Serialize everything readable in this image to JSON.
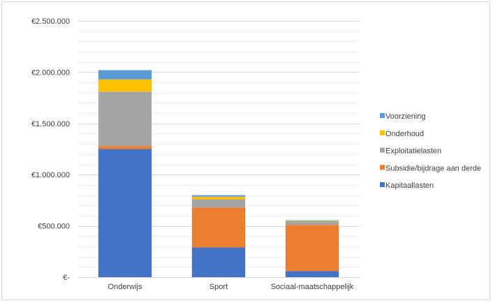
{
  "chart_data": {
    "type": "bar",
    "stacked": true,
    "categories": [
      "Onderwijs",
      "Sport",
      "Sociaal-maatschappelijk"
    ],
    "series": [
      {
        "name": "Kapitaallasten",
        "color": "#4472C4",
        "values": [
          1250000,
          290000,
          60000
        ]
      },
      {
        "name": "Subsidie/bijdrage aan derde",
        "color": "#ED7D31",
        "values": [
          30000,
          390000,
          450000
        ]
      },
      {
        "name": "Exploitatielasten",
        "color": "#A5A5A5",
        "values": [
          530000,
          80000,
          35000
        ]
      },
      {
        "name": "Onderhoud",
        "color": "#FFC000",
        "values": [
          120000,
          25000,
          5000
        ]
      },
      {
        "name": "Voorziening",
        "color": "#5B9BD5",
        "values": [
          90000,
          15000,
          5000
        ]
      }
    ],
    "ylim": [
      0,
      2500000
    ],
    "yticks": [
      0,
      500000,
      1000000,
      1500000,
      2000000,
      2500000
    ],
    "ytick_labels": [
      "€-",
      "€500.000",
      "€1.000.000",
      "€1.500.000",
      "€2.000.000",
      "€2.500.000"
    ],
    "minor_gridlines_per_major": 5,
    "grid": true,
    "legend_placement": "right",
    "legend_order": [
      "Voorziening",
      "Onderhoud",
      "Exploitatielasten",
      "Subsidie/bijdrage aan derde",
      "Kapitaallasten"
    ]
  }
}
